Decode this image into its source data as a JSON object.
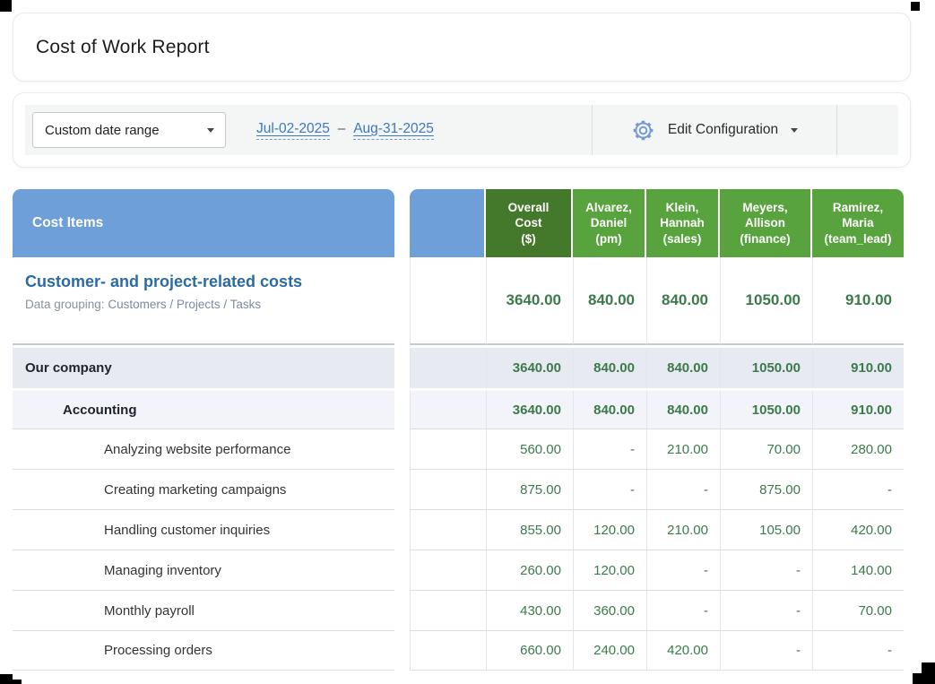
{
  "colors": {
    "header_blue": "#6f9fd8",
    "header_green": "#58a33d",
    "header_dark_green": "#44782a",
    "value_green": "#3c7a4b",
    "link_blue": "#3b78c4",
    "section_title_blue": "#2a6ba5",
    "group_row_bg": "#e8eaf2",
    "subgroup_row_bg": "#f2f4f9"
  },
  "title": "Cost of Work Report",
  "toolbar": {
    "date_range_select": "Custom date range",
    "date_from": "Jul-02-2025",
    "date_separator": "–",
    "date_to": "Aug-31-2025",
    "edit_configuration_label": "Edit Configuration"
  },
  "report": {
    "left_header": "Cost Items",
    "columns": [
      {
        "id": "overall-cost",
        "label": "Overall\nCost\n($)"
      },
      {
        "id": "alvarez-daniel",
        "label": "Alvarez,\nDaniel\n(pm)"
      },
      {
        "id": "klein-hannah",
        "label": "Klein,\nHannah\n(sales)"
      },
      {
        "id": "meyers-allison",
        "label": "Meyers,\nAllison\n(finance)"
      },
      {
        "id": "ramirez-maria",
        "label": "Ramirez,\nMaria\n(team_lead)"
      }
    ],
    "section": {
      "title": "Customer- and project-related costs",
      "data_grouping_label": "Data grouping:",
      "data_grouping_value": "Customers / Projects / Tasks",
      "totals": [
        "3640.00",
        "840.00",
        "840.00",
        "1050.00",
        "910.00"
      ]
    },
    "rows": [
      {
        "label": "Our company",
        "type": "g1",
        "values": [
          "3640.00",
          "840.00",
          "840.00",
          "1050.00",
          "910.00"
        ]
      },
      {
        "label": "Accounting",
        "type": "g2",
        "values": [
          "3640.00",
          "840.00",
          "840.00",
          "1050.00",
          "910.00"
        ]
      },
      {
        "label": "Analyzing website performance",
        "type": "task",
        "values": [
          "560.00",
          "-",
          "210.00",
          "70.00",
          "280.00"
        ]
      },
      {
        "label": "Creating marketing campaigns",
        "type": "task",
        "values": [
          "875.00",
          "-",
          "-",
          "875.00",
          "-"
        ]
      },
      {
        "label": "Handling customer inquiries",
        "type": "task",
        "values": [
          "855.00",
          "120.00",
          "210.00",
          "105.00",
          "420.00"
        ]
      },
      {
        "label": "Managing inventory",
        "type": "task",
        "values": [
          "260.00",
          "120.00",
          "-",
          "-",
          "140.00"
        ]
      },
      {
        "label": "Monthly payroll",
        "type": "task",
        "values": [
          "430.00",
          "360.00",
          "-",
          "-",
          "70.00"
        ]
      },
      {
        "label": "Processing orders",
        "type": "task",
        "values": [
          "660.00",
          "240.00",
          "420.00",
          "-",
          "-"
        ]
      }
    ]
  }
}
